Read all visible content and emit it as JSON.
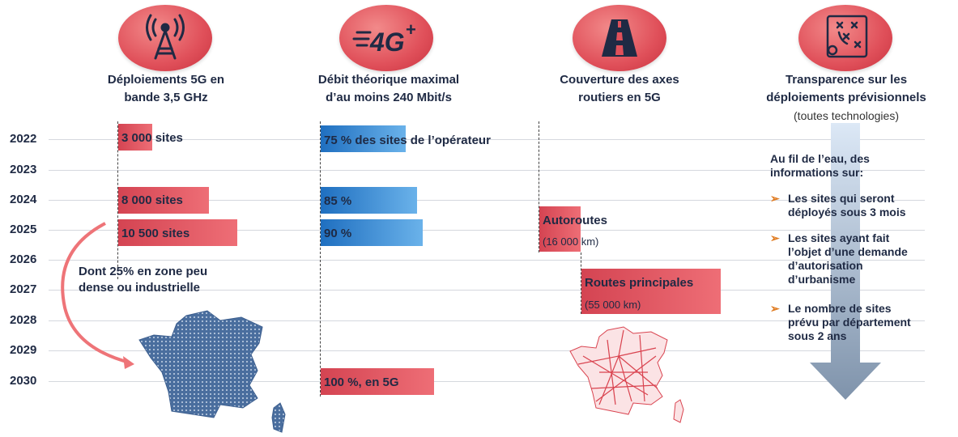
{
  "columns": [
    {
      "title_line1": "Déploiements 5G en",
      "title_line2": "bande 3,5 GHz",
      "icon": "antenna-icon"
    },
    {
      "title_line1": "Débit théorique maximal",
      "title_line2": "d’au moins 240 Mbit/s",
      "icon": "4g-plus-icon"
    },
    {
      "title_line1": "Couverture des axes",
      "title_line2": "routiers en 5G",
      "icon": "road-icon"
    },
    {
      "title_line1": "Transparence sur les",
      "title_line2": "déploiements prévisionnels",
      "subtitle": "(toutes technologies)",
      "icon": "plan-map-icon"
    }
  ],
  "years": [
    "2022",
    "2023",
    "2024",
    "2025",
    "2026",
    "2027",
    "2028",
    "2029",
    "2030"
  ],
  "sites_bars": [
    {
      "year": "2022",
      "label": "3 000 sites",
      "value": 3000
    },
    {
      "year": "2024",
      "label": "8 000 sites",
      "value": 8000
    },
    {
      "year": "2025",
      "label": "10 500 sites",
      "value": 10500
    }
  ],
  "sites_note": {
    "line1": "Dont 25% en zone peu",
    "line2": "dense ou industrielle"
  },
  "speed_bars": [
    {
      "year": "2022",
      "label": "75 % des sites de l’opérateur",
      "value": 75
    },
    {
      "year": "2024",
      "label": "85 %",
      "value": 85
    },
    {
      "year": "2025",
      "label": "90 %",
      "value": 90
    },
    {
      "year": "2030",
      "label": "100 %, en 5G",
      "value": 100
    }
  ],
  "roads": [
    {
      "label": "Autoroutes",
      "detail": "(16 000 km)"
    },
    {
      "label": "Routes principales",
      "detail": "(55 000 km)"
    }
  ],
  "transparency": {
    "intro_line1": "Au fil de l’eau, des",
    "intro_line2": "informations sur:",
    "bullets": [
      {
        "lines": [
          "Les sites qui seront",
          "déployés sous 3 mois"
        ]
      },
      {
        "lines": [
          "Les sites ayant fait",
          "l’objet d’une demande",
          "d’autorisation",
          "d’urbanisme"
        ]
      },
      {
        "lines": [
          "Le nombre de sites",
          "prévu par département",
          "sous 2 ans"
        ]
      }
    ]
  },
  "colors": {
    "red": "#e0505a",
    "blue": "#2b7cc9",
    "navy": "#1f2a44",
    "map_blue": "#4a6e9e",
    "map_red": "#d9434f"
  }
}
